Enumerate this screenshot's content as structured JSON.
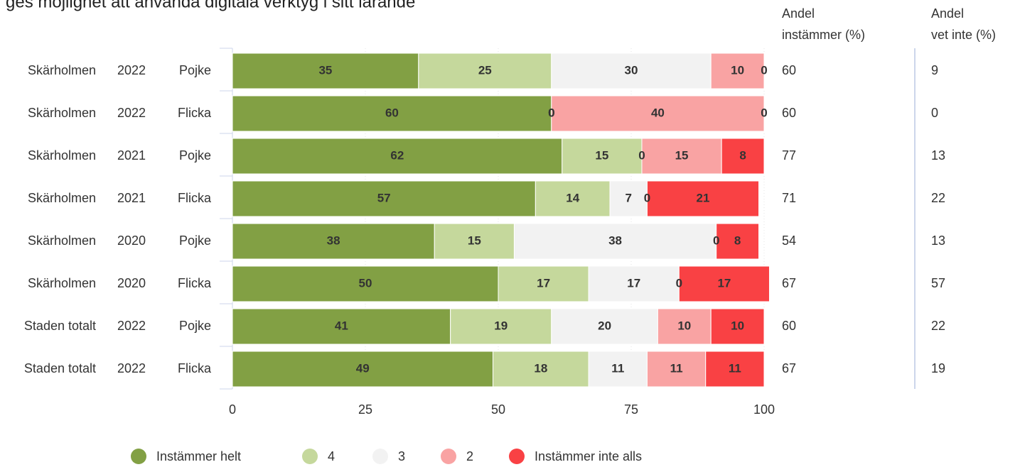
{
  "chart_data": {
    "type": "bar",
    "orientation": "horizontal",
    "stacked": true,
    "title": "ges möjlighet att använda digitala verktyg i sitt lärande",
    "categories": [
      [
        "Skärholmen",
        "2022",
        "Pojke"
      ],
      [
        "Skärholmen",
        "2022",
        "Flicka"
      ],
      [
        "Skärholmen",
        "2021",
        "Pojke"
      ],
      [
        "Skärholmen",
        "2021",
        "Flicka"
      ],
      [
        "Skärholmen",
        "2020",
        "Pojke"
      ],
      [
        "Skärholmen",
        "2020",
        "Flicka"
      ],
      [
        "Staden totalt",
        "2022",
        "Pojke"
      ],
      [
        "Staden totalt",
        "2022",
        "Flicka"
      ]
    ],
    "series": [
      {
        "name": "Instämmer helt",
        "color": "#82a044",
        "label_color": "#ffffff",
        "values": [
          35,
          60,
          62,
          57,
          38,
          50,
          41,
          49
        ]
      },
      {
        "name": "4",
        "color": "#c5d89c",
        "label_color": "#ffffff",
        "values": [
          25,
          0,
          15,
          14,
          15,
          17,
          19,
          18
        ]
      },
      {
        "name": "3",
        "color": "#f2f2f2",
        "label_color": "#000000",
        "values": [
          30,
          0,
          0,
          7,
          38,
          17,
          20,
          11
        ]
      },
      {
        "name": "2",
        "color": "#f9a3a3",
        "label_color": "#000000",
        "values": [
          10,
          40,
          15,
          0,
          0,
          0,
          10,
          11
        ]
      },
      {
        "name": "Instämmer inte alls",
        "color": "#f94144",
        "label_color": "#ffffff",
        "values": [
          0,
          0,
          8,
          21,
          8,
          17,
          10,
          11
        ]
      }
    ],
    "columns": [
      {
        "header": [
          "Andel",
          "instämmer (%)"
        ],
        "values": [
          60,
          60,
          77,
          71,
          54,
          67,
          60,
          67
        ]
      },
      {
        "header": [
          "Andel",
          "vet inte (%)"
        ],
        "values": [
          9,
          0,
          13,
          22,
          13,
          57,
          22,
          19
        ]
      }
    ],
    "xlim": [
      0,
      100
    ],
    "xticks": [
      0,
      25,
      50,
      75,
      100
    ],
    "grid": true,
    "legend": "bottom"
  }
}
